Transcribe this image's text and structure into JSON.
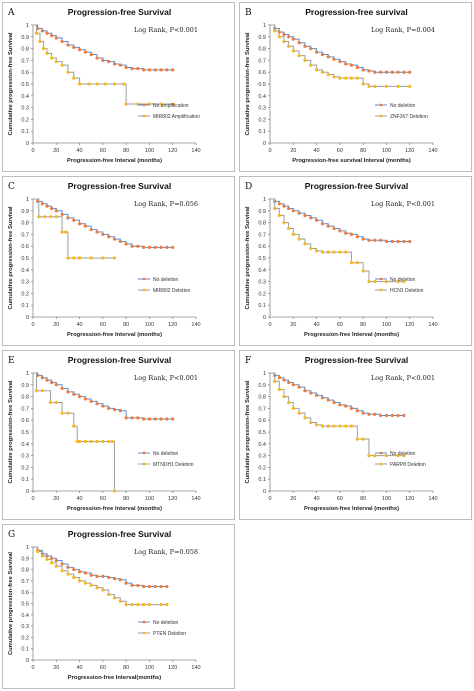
{
  "colors": {
    "orange": "#f07a3c",
    "yellow": "#f5b81f",
    "blue": "#5b8ed0",
    "gray": "#9e9e9e"
  },
  "chart_data": [
    {
      "type": "line",
      "letter": "A",
      "title": "Progression-free Survival",
      "xlabel": "Progression-free Interval (months)",
      "ylabel": "Cumulative progression-free Survival",
      "logrank": "Log Rank, P<0.001",
      "xlim": [
        0,
        140
      ],
      "xticks": [
        0,
        20,
        40,
        60,
        80,
        100,
        120,
        140
      ],
      "ylim": [
        0,
        1
      ],
      "yticks": [
        0,
        0.1,
        0.2,
        0.3,
        0.4,
        0.5,
        0.6,
        0.7,
        0.8,
        0.9,
        1
      ],
      "series": [
        {
          "name": "No amplification",
          "line_color": "#5b8ed0",
          "marker_color": "#f07a3c",
          "x": [
            0,
            4,
            8,
            12,
            16,
            20,
            25,
            30,
            35,
            40,
            45,
            50,
            55,
            60,
            65,
            70,
            75,
            80,
            85,
            90,
            95,
            100,
            105,
            110,
            115,
            120
          ],
          "y": [
            1,
            0.97,
            0.95,
            0.93,
            0.91,
            0.89,
            0.86,
            0.83,
            0.81,
            0.79,
            0.77,
            0.75,
            0.72,
            0.7,
            0.69,
            0.67,
            0.66,
            0.64,
            0.63,
            0.63,
            0.62,
            0.62,
            0.62,
            0.62,
            0.62,
            0.62
          ]
        },
        {
          "name": "MIR802 Amplification",
          "line_color": "#9e9e9e",
          "marker_color": "#f5b81f",
          "x": [
            0,
            3,
            6,
            9,
            12,
            16,
            20,
            25,
            30,
            35,
            40,
            48,
            55,
            62,
            70,
            78,
            80,
            90,
            100,
            110,
            120
          ],
          "y": [
            1,
            0.93,
            0.86,
            0.8,
            0.76,
            0.72,
            0.69,
            0.66,
            0.6,
            0.55,
            0.5,
            0.5,
            0.5,
            0.5,
            0.5,
            0.5,
            0.33,
            0.33,
            0.33,
            0.33,
            0.33
          ]
        }
      ]
    },
    {
      "type": "line",
      "letter": "B",
      "title": "Progression-free survival",
      "xlabel": "Progression-free survival Interval (months)",
      "ylabel": "Cumulative progression-free Survival",
      "logrank": "Log Rank, P=0.004",
      "xlim": [
        0,
        140
      ],
      "xticks": [
        0,
        20,
        40,
        60,
        80,
        100,
        120,
        140
      ],
      "ylim": [
        0,
        1
      ],
      "yticks": [
        0,
        0.1,
        0.2,
        0.3,
        0.4,
        0.5,
        0.6,
        0.7,
        0.8,
        0.9,
        1
      ],
      "series": [
        {
          "name": "No deletion",
          "line_color": "#5b8ed0",
          "marker_color": "#f07a3c",
          "x": [
            0,
            4,
            8,
            12,
            16,
            20,
            25,
            30,
            35,
            40,
            45,
            50,
            55,
            60,
            65,
            70,
            75,
            80,
            85,
            90,
            95,
            100,
            105,
            110,
            115,
            120
          ],
          "y": [
            1,
            0.97,
            0.94,
            0.92,
            0.9,
            0.88,
            0.85,
            0.82,
            0.8,
            0.77,
            0.75,
            0.73,
            0.71,
            0.69,
            0.67,
            0.66,
            0.64,
            0.62,
            0.61,
            0.6,
            0.6,
            0.6,
            0.6,
            0.6,
            0.6,
            0.6
          ]
        },
        {
          "name": "ZNF267 Deletion",
          "line_color": "#9e9e9e",
          "marker_color": "#f5b81f",
          "x": [
            0,
            4,
            8,
            12,
            16,
            20,
            25,
            30,
            35,
            40,
            45,
            50,
            55,
            60,
            65,
            70,
            75,
            80,
            85,
            90,
            100,
            110,
            120
          ],
          "y": [
            1,
            0.95,
            0.9,
            0.86,
            0.82,
            0.78,
            0.74,
            0.7,
            0.66,
            0.62,
            0.6,
            0.58,
            0.56,
            0.55,
            0.55,
            0.55,
            0.55,
            0.5,
            0.48,
            0.48,
            0.48,
            0.48,
            0.48
          ]
        }
      ]
    },
    {
      "type": "line",
      "letter": "C",
      "title": "Progression-free Survival",
      "xlabel": "Progression-free Interval (months)",
      "ylabel": "Cumulative progression-free Survival",
      "logrank": "Log Rank, P=0.056",
      "xlim": [
        0,
        140
      ],
      "xticks": [
        0,
        20,
        40,
        60,
        80,
        100,
        120,
        140
      ],
      "ylim": [
        0,
        1
      ],
      "yticks": [
        0,
        0.1,
        0.2,
        0.3,
        0.4,
        0.5,
        0.6,
        0.7,
        0.8,
        0.9,
        1
      ],
      "series": [
        {
          "name": "No deletion",
          "line_color": "#5b8ed0",
          "marker_color": "#f07a3c",
          "x": [
            0,
            4,
            8,
            12,
            16,
            20,
            25,
            30,
            35,
            40,
            45,
            50,
            55,
            60,
            65,
            70,
            75,
            80,
            85,
            90,
            95,
            100,
            105,
            110,
            115,
            120
          ],
          "y": [
            1,
            0.98,
            0.96,
            0.94,
            0.92,
            0.9,
            0.87,
            0.84,
            0.82,
            0.79,
            0.77,
            0.74,
            0.72,
            0.7,
            0.68,
            0.66,
            0.64,
            0.62,
            0.6,
            0.6,
            0.59,
            0.59,
            0.59,
            0.59,
            0.59,
            0.59
          ]
        },
        {
          "name": "MIR802 Deletion",
          "line_color": "#9e9e9e",
          "marker_color": "#f5b81f",
          "x": [
            0,
            5,
            10,
            15,
            20,
            25,
            28,
            30,
            35,
            40,
            50,
            60,
            70
          ],
          "y": [
            1,
            0.85,
            0.85,
            0.85,
            0.85,
            0.72,
            0.72,
            0.5,
            0.5,
            0.5,
            0.5,
            0.5,
            0.5
          ]
        }
      ]
    },
    {
      "type": "line",
      "letter": "D",
      "title": "Progression-free Survival",
      "xlabel": "Progression-free Interval (months)",
      "ylabel": "Cumulative progression-free Survival",
      "logrank": "Log Rank, P<0.001",
      "xlim": [
        0,
        140
      ],
      "xticks": [
        0,
        20,
        40,
        60,
        80,
        100,
        120,
        140
      ],
      "ylim": [
        0,
        1
      ],
      "yticks": [
        0,
        0.1,
        0.2,
        0.3,
        0.4,
        0.5,
        0.6,
        0.7,
        0.8,
        0.9,
        1
      ],
      "series": [
        {
          "name": "No deletion",
          "line_color": "#5b8ed0",
          "marker_color": "#f07a3c",
          "x": [
            0,
            4,
            8,
            12,
            16,
            20,
            25,
            30,
            35,
            40,
            45,
            50,
            55,
            60,
            65,
            70,
            75,
            80,
            85,
            90,
            95,
            100,
            105,
            110,
            115,
            120
          ],
          "y": [
            1,
            0.98,
            0.96,
            0.94,
            0.92,
            0.9,
            0.88,
            0.86,
            0.84,
            0.82,
            0.79,
            0.77,
            0.75,
            0.73,
            0.71,
            0.7,
            0.68,
            0.66,
            0.65,
            0.65,
            0.65,
            0.64,
            0.64,
            0.64,
            0.64,
            0.64
          ]
        },
        {
          "name": "HCN1 Deletion",
          "line_color": "#9e9e9e",
          "marker_color": "#f5b81f",
          "x": [
            0,
            4,
            8,
            12,
            16,
            20,
            25,
            30,
            35,
            40,
            45,
            50,
            55,
            60,
            65,
            70,
            75,
            80,
            85,
            90,
            100,
            110,
            115
          ],
          "y": [
            1,
            0.92,
            0.86,
            0.8,
            0.75,
            0.7,
            0.66,
            0.62,
            0.58,
            0.56,
            0.55,
            0.55,
            0.55,
            0.55,
            0.55,
            0.46,
            0.46,
            0.39,
            0.3,
            0.3,
            0.3,
            0.3,
            0.3
          ]
        }
      ]
    },
    {
      "type": "line",
      "letter": "E",
      "title": "Progression-free Survival",
      "xlabel": "Progression-free Interval (months)",
      "ylabel": "Cumulative progression-free Survival",
      "logrank": "Log Rank, P<0.001",
      "xlim": [
        0,
        140
      ],
      "xticks": [
        0,
        20,
        40,
        60,
        80,
        100,
        120,
        140
      ],
      "ylim": [
        0,
        1
      ],
      "yticks": [
        0,
        0.1,
        0.2,
        0.3,
        0.4,
        0.5,
        0.6,
        0.7,
        0.8,
        0.9,
        1
      ],
      "series": [
        {
          "name": "No deletion",
          "line_color": "#5b8ed0",
          "marker_color": "#f07a3c",
          "x": [
            0,
            4,
            8,
            12,
            16,
            20,
            25,
            30,
            35,
            40,
            45,
            50,
            55,
            60,
            65,
            70,
            75,
            80,
            85,
            90,
            95,
            100,
            105,
            110,
            115,
            120
          ],
          "y": [
            1,
            0.98,
            0.96,
            0.94,
            0.92,
            0.9,
            0.87,
            0.84,
            0.82,
            0.8,
            0.78,
            0.76,
            0.74,
            0.72,
            0.7,
            0.69,
            0.68,
            0.62,
            0.62,
            0.62,
            0.61,
            0.61,
            0.61,
            0.61,
            0.61,
            0.61
          ]
        },
        {
          "name": "MTNDH1 Deletion",
          "line_color": "#9e9e9e",
          "marker_color": "#f5b81f",
          "x": [
            0,
            3,
            8,
            15,
            20,
            25,
            30,
            35,
            38,
            40,
            45,
            50,
            55,
            60,
            65,
            68,
            70
          ],
          "y": [
            1,
            0.85,
            0.85,
            0.75,
            0.75,
            0.66,
            0.66,
            0.55,
            0.42,
            0.42,
            0.42,
            0.42,
            0.42,
            0.42,
            0.42,
            0.42,
            0
          ]
        }
      ]
    },
    {
      "type": "line",
      "letter": "F",
      "title": "Progression-free Survival",
      "xlabel": "Progression-free Interval (months)",
      "ylabel": "Cumulative progression-free Survival",
      "logrank": "Log Rank, P<0.001",
      "xlim": [
        0,
        140
      ],
      "xticks": [
        0,
        20,
        40,
        60,
        80,
        100,
        120,
        140
      ],
      "ylim": [
        0,
        1
      ],
      "yticks": [
        0,
        0.1,
        0.2,
        0.3,
        0.4,
        0.5,
        0.6,
        0.7,
        0.8,
        0.9,
        1
      ],
      "series": [
        {
          "name": "No deletion",
          "line_color": "#5b8ed0",
          "marker_color": "#f07a3c",
          "x": [
            0,
            4,
            8,
            12,
            16,
            20,
            25,
            30,
            35,
            40,
            45,
            50,
            55,
            60,
            65,
            70,
            75,
            80,
            85,
            90,
            95,
            100,
            105,
            110,
            115
          ],
          "y": [
            1,
            0.98,
            0.96,
            0.94,
            0.92,
            0.9,
            0.88,
            0.85,
            0.83,
            0.81,
            0.79,
            0.77,
            0.75,
            0.73,
            0.72,
            0.7,
            0.68,
            0.66,
            0.65,
            0.65,
            0.64,
            0.64,
            0.64,
            0.64,
            0.64
          ]
        },
        {
          "name": "PARP8 Deletion",
          "line_color": "#9e9e9e",
          "marker_color": "#f5b81f",
          "x": [
            0,
            4,
            8,
            12,
            16,
            20,
            25,
            30,
            35,
            40,
            45,
            50,
            55,
            60,
            65,
            70,
            75,
            80,
            85,
            90,
            100,
            110,
            115
          ],
          "y": [
            1,
            0.93,
            0.86,
            0.8,
            0.75,
            0.7,
            0.66,
            0.62,
            0.58,
            0.56,
            0.55,
            0.55,
            0.55,
            0.55,
            0.55,
            0.55,
            0.44,
            0.44,
            0.3,
            0.3,
            0.3,
            0.3,
            0.3
          ]
        }
      ]
    },
    {
      "type": "line",
      "letter": "G",
      "title": "Progression-free Survival",
      "xlabel": "Progression-free Interval(months)",
      "ylabel": "Cumulative progression-free Survival",
      "logrank": "Log Rank, P=0.058",
      "xlim": [
        0,
        140
      ],
      "xticks": [
        0,
        20,
        40,
        60,
        80,
        100,
        120,
        140
      ],
      "ylim": [
        0,
        1
      ],
      "yticks": [
        0,
        0.1,
        0.2,
        0.3,
        0.4,
        0.5,
        0.6,
        0.7,
        0.8,
        0.9,
        1
      ],
      "series": [
        {
          "name": "No deletion",
          "line_color": "#5b8ed0",
          "marker_color": "#f07a3c",
          "x": [
            0,
            4,
            8,
            12,
            16,
            20,
            25,
            30,
            35,
            40,
            45,
            50,
            55,
            60,
            65,
            70,
            75,
            80,
            85,
            90,
            95,
            100,
            105,
            110,
            115
          ],
          "y": [
            1,
            0.97,
            0.94,
            0.92,
            0.9,
            0.88,
            0.85,
            0.82,
            0.8,
            0.78,
            0.77,
            0.75,
            0.74,
            0.74,
            0.73,
            0.72,
            0.71,
            0.68,
            0.66,
            0.66,
            0.65,
            0.65,
            0.65,
            0.65,
            0.65
          ]
        },
        {
          "name": "PTEN Deletion",
          "line_color": "#9e9e9e",
          "marker_color": "#f5b81f",
          "x": [
            0,
            4,
            8,
            12,
            16,
            20,
            25,
            30,
            35,
            40,
            45,
            50,
            55,
            60,
            65,
            70,
            75,
            80,
            85,
            90,
            95,
            100,
            110,
            115
          ],
          "y": [
            1,
            0.96,
            0.92,
            0.89,
            0.86,
            0.83,
            0.79,
            0.76,
            0.73,
            0.7,
            0.68,
            0.66,
            0.64,
            0.62,
            0.58,
            0.55,
            0.52,
            0.49,
            0.49,
            0.49,
            0.49,
            0.49,
            0.49,
            0.49
          ]
        }
      ]
    }
  ]
}
